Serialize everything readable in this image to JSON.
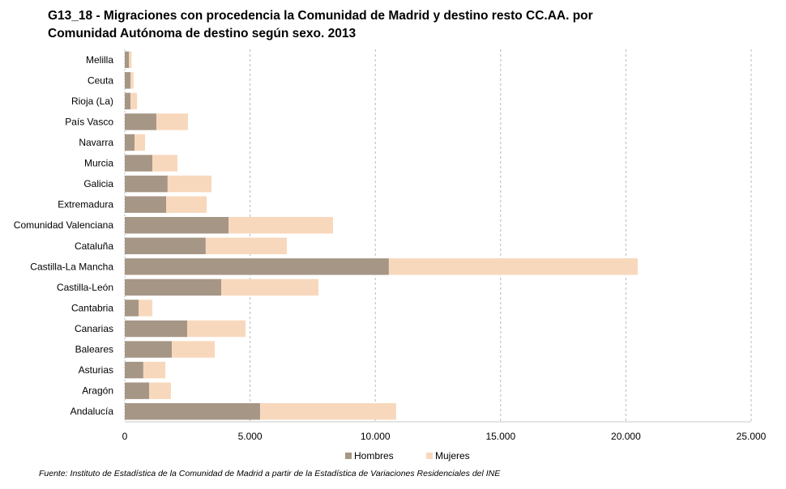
{
  "title": {
    "line1": "G13_18 - Migraciones con procedencia la Comunidad de Madrid y destino resto CC.AA. por",
    "line2": "Comunidad Autónoma de destino según sexo. 2013"
  },
  "source": "Fuente: Instituto de Estadística de la Comunidad de Madrid a partir de la Estadística de Variaciones Residenciales del  INE",
  "colors": {
    "hombres": "#a69686",
    "mujeres": "#f8d8bc",
    "grid": "#b8b8b8",
    "axis": "#c8c8c8"
  },
  "legend": [
    {
      "label": "Hombres",
      "color": "#a69686"
    },
    {
      "label": "Mujeres",
      "color": "#f8d8bc"
    }
  ],
  "chart_data": {
    "type": "bar",
    "orientation": "horizontal",
    "stacked": true,
    "title": "G13_18 - Migraciones con procedencia la Comunidad de Madrid y destino resto CC.AA. por Comunidad Autónoma de destino según sexo. 2013",
    "xlabel": "",
    "ylabel": "",
    "xlim": [
      0,
      25000
    ],
    "xticks": [
      0,
      5000,
      10000,
      15000,
      20000,
      25000
    ],
    "xtick_labels": [
      "0",
      "5.000",
      "10.000",
      "15.000",
      "20.000",
      "25.000"
    ],
    "grid": "vertical-dashed",
    "legend_position": "bottom",
    "categories": [
      "Melilla",
      "Ceuta",
      "Rioja (La)",
      "País Vasco",
      "Navarra",
      "Murcia",
      "Galicia",
      "Extremadura",
      "Comunidad Valenciana",
      "Cataluña",
      "Castilla-La Mancha",
      "Castilla-León",
      "Cantabria",
      "Canarias",
      "Baleares",
      "Asturias",
      "Aragón",
      "Andalucía"
    ],
    "series": [
      {
        "name": "Hombres",
        "values": [
          170,
          230,
          230,
          1260,
          390,
          1100,
          1710,
          1650,
          4140,
          3230,
          10540,
          3850,
          550,
          2490,
          1880,
          740,
          970,
          5400
        ]
      },
      {
        "name": "Mujeres",
        "values": [
          100,
          120,
          260,
          1260,
          420,
          1000,
          1750,
          1620,
          4170,
          3240,
          9930,
          3880,
          550,
          2330,
          1710,
          880,
          870,
          5430
        ]
      }
    ]
  }
}
